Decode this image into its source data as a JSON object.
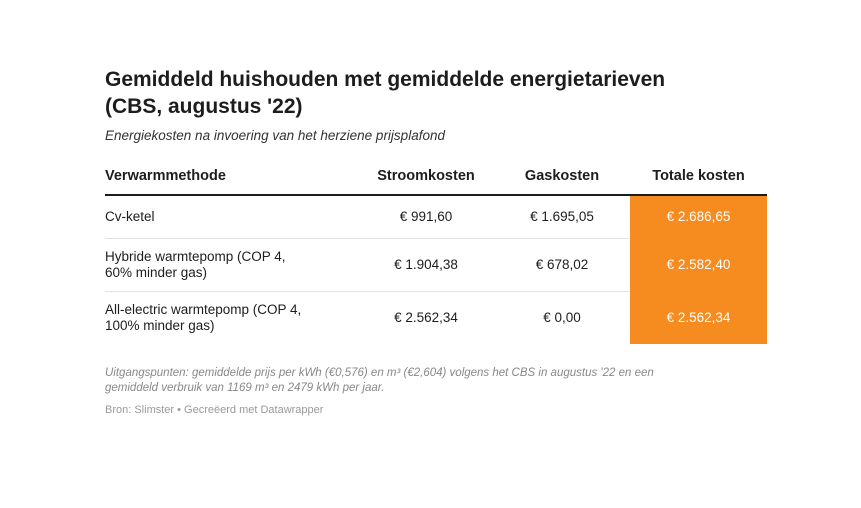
{
  "title_line1": "Gemiddeld huishouden met gemiddelde energietarieven",
  "title_line2": "(CBS, augustus '22)",
  "subtitle": "Energiekosten na invoering van het herziene prijsplafond",
  "headers": [
    "Verwarmmethode",
    "Stroomkosten",
    "Gaskosten",
    "Totale kosten"
  ],
  "rows": [
    {
      "method_line1": "Cv-ketel",
      "method_line2": "",
      "stroom": "€ 991,60",
      "gas": "€ 1.695,05",
      "totaal": "€ 2.686,65"
    },
    {
      "method_line1": "Hybride warmtepomp (COP 4,",
      "method_line2": "60% minder gas)",
      "stroom": "€ 1.904,38",
      "gas": "€ 678,02",
      "totaal": "€ 2.582,40"
    },
    {
      "method_line1": "All-electric warmtepomp (COP 4,",
      "method_line2": "100% minder gas)",
      "stroom": "€ 2.562,34",
      "gas": "€ 0,00",
      "totaal": "€ 2.562,34"
    }
  ],
  "notes_line1": "Uitgangspunten: gemiddelde prijs per kWh (€0,576) en m³ (€2,604) volgens het CBS in augustus '22 en een",
  "notes_line2": "gemiddeld verbruik van 1169 m³ en 2479 kWh per jaar.",
  "source": "Bron: Slimster • Gecreëerd met Datawrapper",
  "colors": {
    "highlight": "#f68b1f",
    "text": "#1d1d1d"
  },
  "chart_data": {
    "type": "table",
    "title": "Gemiddeld huishouden met gemiddelde energietarieven (CBS, augustus '22)",
    "subtitle": "Energiekosten na invoering van het herziene prijsplafond",
    "columns": [
      "Verwarmmethode",
      "Stroomkosten",
      "Gaskosten",
      "Totale kosten"
    ],
    "rows": [
      [
        "Cv-ketel",
        991.6,
        1695.05,
        2686.65
      ],
      [
        "Hybride warmtepomp (COP 4, 60% minder gas)",
        1904.38,
        678.02,
        2582.4
      ],
      [
        "All-electric warmtepomp (COP 4, 100% minder gas)",
        2562.34,
        0.0,
        2562.34
      ]
    ]
  }
}
